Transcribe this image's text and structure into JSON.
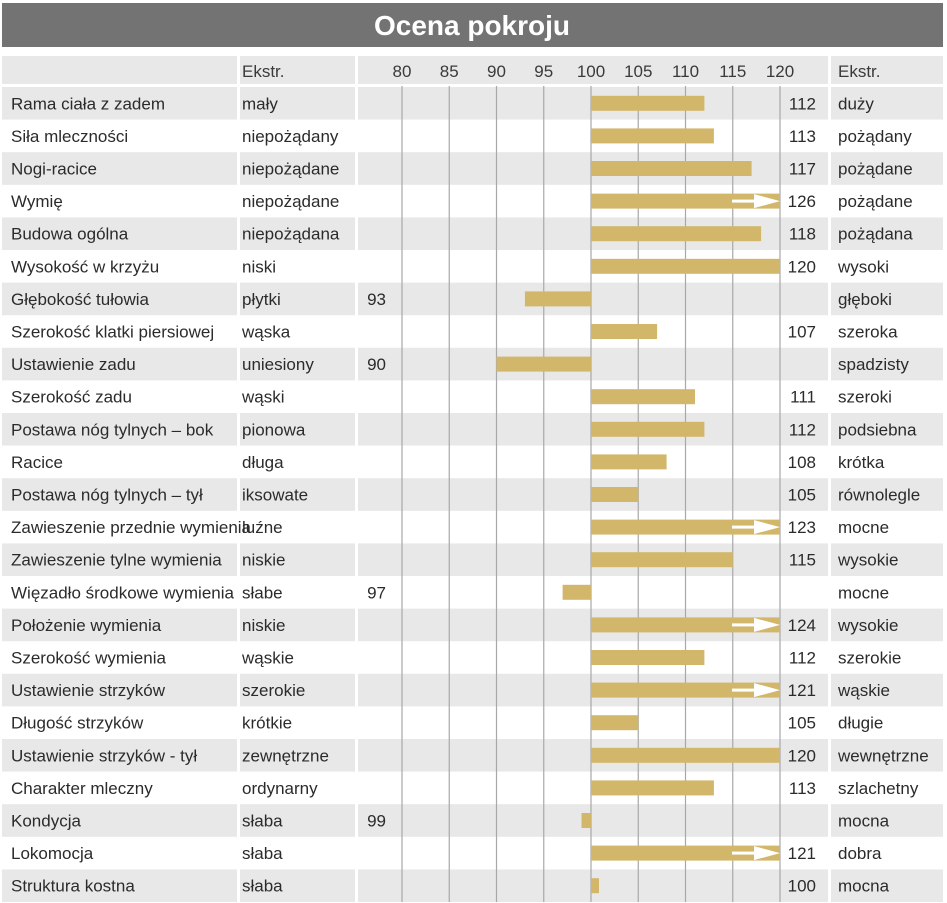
{
  "chart_data": {
    "type": "bar",
    "title": "Ocena pokroju",
    "header": {
      "extreme_left": "Ekstr.",
      "extreme_right": "Ekstr."
    },
    "xlim": [
      80,
      120
    ],
    "baseline": 100,
    "ticks": [
      80,
      85,
      90,
      95,
      100,
      105,
      110,
      115,
      120
    ],
    "tick_labels": [
      "80",
      "85",
      "90",
      "95",
      "100",
      "105",
      "110",
      "115",
      "120"
    ],
    "rows": [
      {
        "trait": "Rama ciała z zadem",
        "left": "mały",
        "value": 112,
        "value_label": "112",
        "right": "duży"
      },
      {
        "trait": "Siła mleczności",
        "left": "niepożądany",
        "value": 113,
        "value_label": "113",
        "right": "pożądany"
      },
      {
        "trait": "Nogi-racice",
        "left": "niepożądane",
        "value": 117,
        "value_label": "117",
        "right": "pożądane"
      },
      {
        "trait": "Wymię",
        "left": "niepożądane",
        "value": 126,
        "value_label": "126",
        "right": "pożądane"
      },
      {
        "trait": "Budowa ogólna",
        "left": "niepożądana",
        "value": 118,
        "value_label": "118",
        "right": "pożądana"
      },
      {
        "trait": "Wysokość w krzyżu",
        "left": "niski",
        "value": 120,
        "value_label": "120",
        "right": "wysoki"
      },
      {
        "trait": "Głębokość tułowia",
        "left": "płytki",
        "value": 93,
        "value_label": "93",
        "right": "głęboki"
      },
      {
        "trait": "Szerokość klatki piersiowej",
        "left": "wąska",
        "value": 107,
        "value_label": "107",
        "right": "szeroka"
      },
      {
        "trait": "Ustawienie zadu",
        "left": "uniesiony",
        "value": 90,
        "value_label": "90",
        "right": "spadzisty"
      },
      {
        "trait": "Szerokość zadu",
        "left": "wąski",
        "value": 111,
        "value_label": "111",
        "right": "szeroki"
      },
      {
        "trait": "Postawa nóg tylnych – bok",
        "left": "pionowa",
        "value": 112,
        "value_label": "112",
        "right": "podsiebna"
      },
      {
        "trait": "Racice",
        "left": "długa",
        "value": 108,
        "value_label": "108",
        "right": "krótka"
      },
      {
        "trait": "Postawa nóg tylnych – tył",
        "left": "iksowate",
        "value": 105,
        "value_label": "105",
        "right": "równolegle"
      },
      {
        "trait": "Zawieszenie przednie wymienia",
        "left": "luźne",
        "value": 123,
        "value_label": "123",
        "right": "mocne"
      },
      {
        "trait": "Zawieszenie tylne wymienia",
        "left": "niskie",
        "value": 115,
        "value_label": "115",
        "right": "wysokie"
      },
      {
        "trait": "Więzadło środkowe wymienia",
        "left": "słabe",
        "value": 97,
        "value_label": "97",
        "right": "mocne"
      },
      {
        "trait": "Położenie wymienia",
        "left": "niskie",
        "value": 124,
        "value_label": "124",
        "right": "wysokie"
      },
      {
        "trait": "Szerokość wymienia",
        "left": "wąskie",
        "value": 112,
        "value_label": "112",
        "right": "szerokie"
      },
      {
        "trait": "Ustawienie strzyków",
        "left": "szerokie",
        "value": 121,
        "value_label": "121",
        "right": "wąskie"
      },
      {
        "trait": "Długość strzyków",
        "left": "krótkie",
        "value": 105,
        "value_label": "105",
        "right": "długie"
      },
      {
        "trait": "Ustawienie strzyków - tył",
        "left": "zewnętrzne",
        "value": 120,
        "value_label": "120",
        "right": "wewnętrzne"
      },
      {
        "trait": "Charakter mleczny",
        "left": "ordynarny",
        "value": 113,
        "value_label": "113",
        "right": "szlachetny"
      },
      {
        "trait": "Kondycja",
        "left": "słaba",
        "value": 99,
        "value_label": "99",
        "right": "mocna"
      },
      {
        "trait": "Lokomocja",
        "left": "słaba",
        "value": 121,
        "value_label": "121",
        "right": "dobra"
      },
      {
        "trait": "Struktura kostna",
        "left": "słaba",
        "value": 100,
        "value_label": "100",
        "right": "mocna"
      }
    ]
  },
  "colors": {
    "title_bar": "#737373",
    "row_shade": "#e8e8e8",
    "bar": "#d2b76b",
    "gridline": "#a8a8a8",
    "arrow": "#ffffff"
  }
}
